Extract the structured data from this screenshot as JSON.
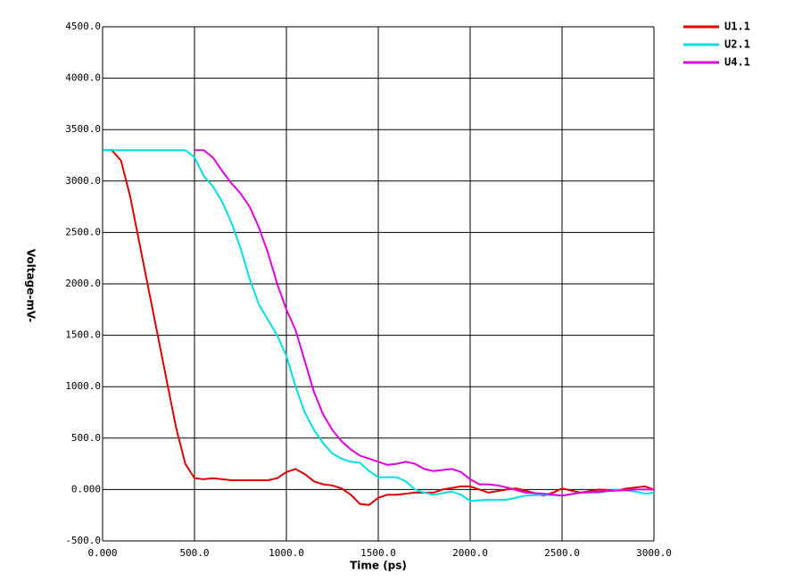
{
  "chart_data": {
    "type": "line",
    "x_label": "Time (ps)",
    "y_label": "Voltage-mV-",
    "xlim": [
      0,
      3000
    ],
    "xticks": [
      {
        "value": 0,
        "label": "0.000"
      },
      {
        "value": 500,
        "label": "500.0"
      },
      {
        "value": 1000,
        "label": "1000.0"
      },
      {
        "value": 1500,
        "label": "1500.0"
      },
      {
        "value": 2000,
        "label": "2000.0"
      },
      {
        "value": 2500,
        "label": "2500.0"
      },
      {
        "value": 3000,
        "label": "3000.0"
      }
    ],
    "ylim": [
      -500,
      4500
    ],
    "yticks": [
      {
        "value": -500,
        "label": "-500.0"
      },
      {
        "value": 0,
        "label": "0.000"
      },
      {
        "value": 500,
        "label": "500.0"
      },
      {
        "value": 1000,
        "label": "1000.0"
      },
      {
        "value": 1500,
        "label": "1500.0"
      },
      {
        "value": 2000,
        "label": "2000.0"
      },
      {
        "value": 2500,
        "label": "2500.0"
      },
      {
        "value": 3000,
        "label": "3000.0"
      },
      {
        "value": 3500,
        "label": "3500.0"
      },
      {
        "value": 4000,
        "label": "4000.0"
      },
      {
        "value": 4500,
        "label": "4500.0"
      }
    ],
    "grid": true,
    "legend": "top-right",
    "series": [
      {
        "name": "U1.1",
        "color": "#e00000",
        "x": [
          0,
          50,
          100,
          150,
          200,
          250,
          300,
          350,
          400,
          450,
          500,
          550,
          600,
          700,
          800,
          900,
          950,
          1000,
          1050,
          1100,
          1150,
          1200,
          1250,
          1300,
          1350,
          1400,
          1450,
          1500,
          1550,
          1600,
          1700,
          1800,
          1850,
          1950,
          2000,
          2050,
          2100,
          2200,
          2250,
          2300,
          2400,
          2450,
          2500,
          2550,
          2600,
          2700,
          2800,
          2850,
          2900,
          2950,
          3000
        ],
        "values": [
          3300,
          3300,
          3200,
          2850,
          2400,
          1950,
          1500,
          1050,
          600,
          250,
          110,
          100,
          110,
          90,
          90,
          90,
          110,
          170,
          200,
          150,
          80,
          50,
          40,
          10,
          -50,
          -140,
          -150,
          -80,
          -50,
          -50,
          -30,
          -30,
          0,
          30,
          30,
          0,
          -30,
          0,
          10,
          -10,
          -60,
          -30,
          10,
          -10,
          -30,
          0,
          -10,
          10,
          20,
          30,
          0
        ]
      },
      {
        "name": "U2.1",
        "color": "#00e0e0",
        "x": [
          0,
          450,
          500,
          550,
          600,
          650,
          700,
          750,
          800,
          850,
          900,
          950,
          1000,
          1050,
          1100,
          1150,
          1200,
          1250,
          1300,
          1350,
          1400,
          1450,
          1500,
          1600,
          1650,
          1700,
          1750,
          1800,
          1900,
          1950,
          2000,
          2100,
          2200,
          2300,
          2400,
          2500,
          2600,
          2700,
          2800,
          2900,
          2950,
          3000
        ],
        "values": [
          3300,
          3300,
          3230,
          3050,
          2950,
          2800,
          2600,
          2350,
          2050,
          1800,
          1650,
          1500,
          1300,
          1000,
          750,
          580,
          450,
          350,
          300,
          270,
          260,
          180,
          120,
          120,
          80,
          0,
          -30,
          -50,
          -20,
          -50,
          -110,
          -100,
          -100,
          -60,
          -50,
          -60,
          -30,
          -30,
          0,
          -20,
          -40,
          -30
        ]
      },
      {
        "name": "U4.1",
        "color": "#e000e0",
        "x": [
          500,
          550,
          600,
          650,
          700,
          750,
          800,
          850,
          900,
          950,
          1000,
          1050,
          1100,
          1150,
          1200,
          1250,
          1300,
          1350,
          1400,
          1450,
          1500,
          1550,
          1600,
          1650,
          1700,
          1750,
          1800,
          1850,
          1900,
          1950,
          2000,
          2050,
          2100,
          2150,
          2200,
          2300,
          2400,
          2500,
          2600,
          2700,
          2800,
          2900,
          3000
        ],
        "values": [
          3300,
          3300,
          3230,
          3100,
          2980,
          2880,
          2750,
          2550,
          2300,
          2000,
          1750,
          1550,
          1250,
          950,
          730,
          580,
          470,
          390,
          330,
          300,
          270,
          240,
          250,
          270,
          250,
          200,
          180,
          190,
          200,
          170,
          100,
          50,
          50,
          40,
          20,
          -30,
          -40,
          -60,
          -30,
          -20,
          -10,
          0,
          0
        ]
      }
    ]
  }
}
